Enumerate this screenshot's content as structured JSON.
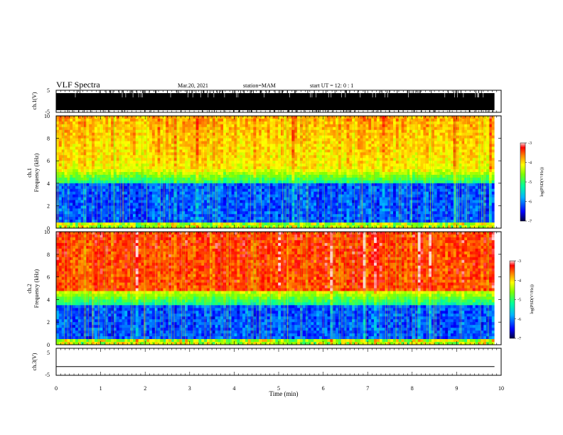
{
  "header": {
    "title": "VLF Spectra",
    "date": "Mar.20, 2021",
    "station": "station=MAM",
    "start_ut": "start UT =  12: 0  : 1"
  },
  "chart_data": [
    {
      "type": "line",
      "ylabel": "ch.1(V)",
      "ylim": [
        -5,
        5
      ],
      "yticks": [
        "5",
        "-5"
      ],
      "xlim": [
        0,
        10
      ],
      "description": "dense impulsive waveform (spherics)"
    },
    {
      "type": "heatmap",
      "ylabel": "ch.1",
      "ylabel2": "Frequency (kHz)",
      "ylim": [
        0,
        10
      ],
      "yticks": [
        "0",
        "2",
        "4",
        "6",
        "8",
        "10"
      ],
      "xlim": [
        0,
        9.85
      ],
      "colorbar": {
        "label": "log(PSD(V²/Hz))",
        "ticks": [
          "-3",
          "-4",
          "-5",
          "-6",
          "-7"
        ],
        "range": [
          -7,
          -3
        ]
      }
    },
    {
      "type": "heatmap",
      "ylabel": "ch.2",
      "ylabel2": "Frequency (kHz)",
      "ylim": [
        0,
        10
      ],
      "yticks": [
        "0",
        "2",
        "4",
        "6",
        "8",
        "10"
      ],
      "xlim": [
        0,
        9.85
      ],
      "colorbar": {
        "label": "log(PSD(V²/Hz))",
        "ticks": [
          "-3",
          "-4",
          "-5",
          "-6",
          "-7"
        ],
        "range": [
          -7,
          -3
        ]
      }
    },
    {
      "type": "line",
      "ylabel": "ch.3(V)",
      "ylim": [
        -5,
        5
      ],
      "yticks": [
        "5",
        "-5"
      ],
      "xlim": [
        0,
        10
      ],
      "series": [
        {
          "x": [
            0,
            9.85
          ],
          "y": [
            -1.8,
            -1.8
          ]
        }
      ]
    }
  ],
  "xaxis": {
    "label": "Time (min)",
    "ticks": [
      "0",
      "1",
      "2",
      "3",
      "4",
      "5",
      "6",
      "7",
      "8",
      "9",
      "10"
    ],
    "range": [
      0,
      10
    ]
  },
  "colors": {
    "colormap": [
      "#000080",
      "#0000ff",
      "#00c8ff",
      "#00ff80",
      "#ffff00",
      "#ff8000",
      "#ff0000",
      "#ffc8c8"
    ]
  }
}
